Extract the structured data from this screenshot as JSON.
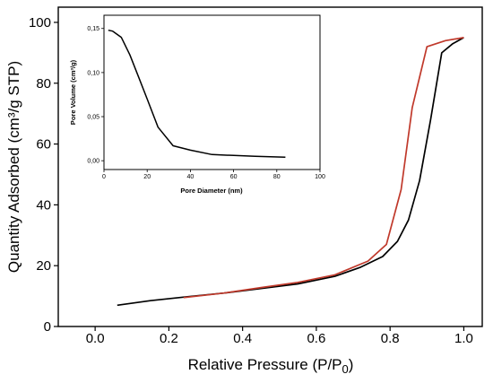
{
  "chart_data": [
    {
      "type": "line",
      "title": "",
      "xlabel": "Relative Pressure (P/P",
      "xlabel_sub": "0",
      "xlabel_end": ")",
      "ylabel": "Quantity Adsorbed (cm³/g STP)",
      "xlim": [
        -0.1,
        1.05
      ],
      "ylim": [
        0,
        105
      ],
      "x_ticks": [
        "0.0",
        "0.2",
        "0.4",
        "0.6",
        "0.8",
        "1.0"
      ],
      "y_ticks": [
        "0",
        "20",
        "40",
        "60",
        "80",
        "100"
      ],
      "series": [
        {
          "color": "#000000",
          "x": [
            0.06,
            0.15,
            0.25,
            0.35,
            0.45,
            0.55,
            0.65,
            0.72,
            0.78,
            0.82,
            0.85,
            0.88,
            0.91,
            0.94,
            0.97,
            1.0
          ],
          "y": [
            7,
            8.5,
            9.8,
            11,
            12.5,
            14,
            16.5,
            19.5,
            23,
            28,
            35,
            48,
            68,
            90,
            93,
            95
          ]
        },
        {
          "color": "#c0392b",
          "x": [
            0.24,
            0.35,
            0.45,
            0.55,
            0.65,
            0.74,
            0.79,
            0.83,
            0.86,
            0.88,
            0.9,
            0.95,
            1.0
          ],
          "y": [
            9.5,
            11,
            12.8,
            14.5,
            17,
            21.5,
            27,
            45,
            72,
            82,
            92,
            94,
            95
          ]
        }
      ]
    },
    {
      "type": "line",
      "title": "",
      "xlabel": "Pore Diameter (nm)",
      "ylabel": "Pore Volume (cm³/g)",
      "xlim": [
        0,
        100
      ],
      "ylim": [
        -0.01,
        0.165
      ],
      "x_ticks": [
        "0",
        "20",
        "40",
        "60",
        "80",
        "100"
      ],
      "y_ticks": [
        "0,00",
        "0,05",
        "0,10",
        "0,15"
      ],
      "series": [
        {
          "color": "#000000",
          "x": [
            2,
            4,
            8,
            12,
            16,
            20,
            25,
            32,
            40,
            50,
            60,
            70,
            84
          ],
          "y": [
            0.148,
            0.147,
            0.14,
            0.12,
            0.095,
            0.07,
            0.038,
            0.017,
            0.012,
            0.007,
            0.006,
            0.005,
            0.004
          ]
        }
      ]
    }
  ]
}
